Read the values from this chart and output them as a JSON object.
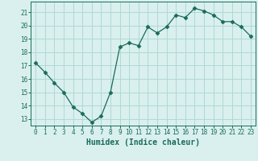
{
  "xlabel": "Humidex (Indice chaleur)",
  "x": [
    0,
    1,
    2,
    3,
    4,
    5,
    6,
    7,
    8,
    9,
    10,
    11,
    12,
    13,
    14,
    15,
    16,
    17,
    18,
    19,
    20,
    21,
    22,
    23
  ],
  "y": [
    17.2,
    16.5,
    15.7,
    15.0,
    13.9,
    13.4,
    12.75,
    13.2,
    15.0,
    18.4,
    18.7,
    18.5,
    19.9,
    19.45,
    19.9,
    20.8,
    20.6,
    21.3,
    21.1,
    20.8,
    20.3,
    20.3,
    19.9,
    19.2
  ],
  "line_color": "#1a6b5a",
  "marker": "D",
  "marker_size": 2.5,
  "bg_color": "#d9f0ef",
  "grid_color": "#b0d8d5",
  "ylim": [
    12.5,
    21.8
  ],
  "xlim": [
    -0.5,
    23.5
  ],
  "yticks": [
    13,
    14,
    15,
    16,
    17,
    18,
    19,
    20,
    21
  ],
  "xticks": [
    0,
    1,
    2,
    3,
    4,
    5,
    6,
    7,
    8,
    9,
    10,
    11,
    12,
    13,
    14,
    15,
    16,
    17,
    18,
    19,
    20,
    21,
    22,
    23
  ],
  "tick_color": "#1a6b5a",
  "label_fontsize": 5.5,
  "xlabel_fontsize": 7.0
}
